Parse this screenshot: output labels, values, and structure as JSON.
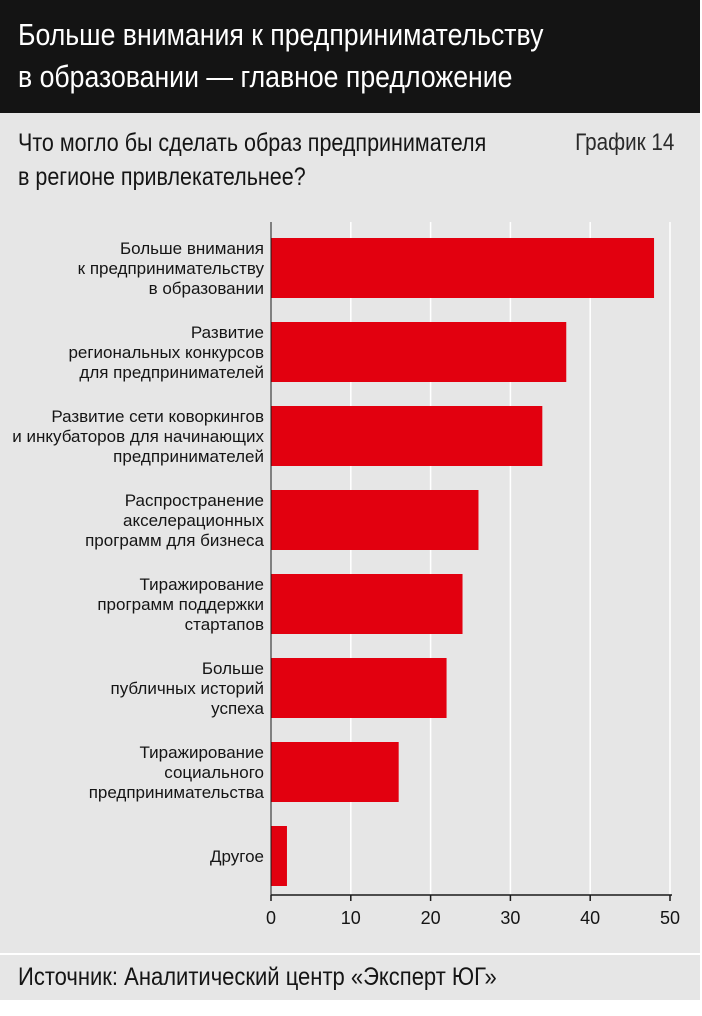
{
  "header": {
    "title": "Больше внимания к предпринимательству\nв образовании — главное предложение"
  },
  "subtitle": "Что могло бы сделать образ предпринимателя\nв регионе привлекательнее?",
  "chart_number": "График 14",
  "source": "Источник: Аналитический центр «Эксперт ЮГ»",
  "colors": {
    "bar": "#e2000f",
    "header_bg": "#141414",
    "panel_bg": "#e6e6e6"
  },
  "chart_data": {
    "type": "bar",
    "orientation": "horizontal",
    "categories": [
      [
        "Больше внимания",
        "к предпринимательству",
        "в образовании"
      ],
      [
        "Развитие",
        "региональных конкурсов",
        "для предпринимателей"
      ],
      [
        "Развитие сети коворкингов",
        "и инкубаторов для начинающих",
        "предпринимателей"
      ],
      [
        "Распространение",
        "акселерационных",
        "программ для бизнеса"
      ],
      [
        "Тиражирование",
        "программ поддержки",
        "стартапов"
      ],
      [
        "Больше",
        "публичных историй",
        "успеха"
      ],
      [
        "Тиражирование",
        "социального",
        "предпринимательства"
      ],
      [
        "Другое"
      ]
    ],
    "values": [
      48,
      37,
      34,
      26,
      24,
      22,
      16,
      2
    ],
    "xlim": [
      0,
      50
    ],
    "xticks": [
      0,
      10,
      20,
      30,
      40,
      50
    ],
    "grid": true
  }
}
